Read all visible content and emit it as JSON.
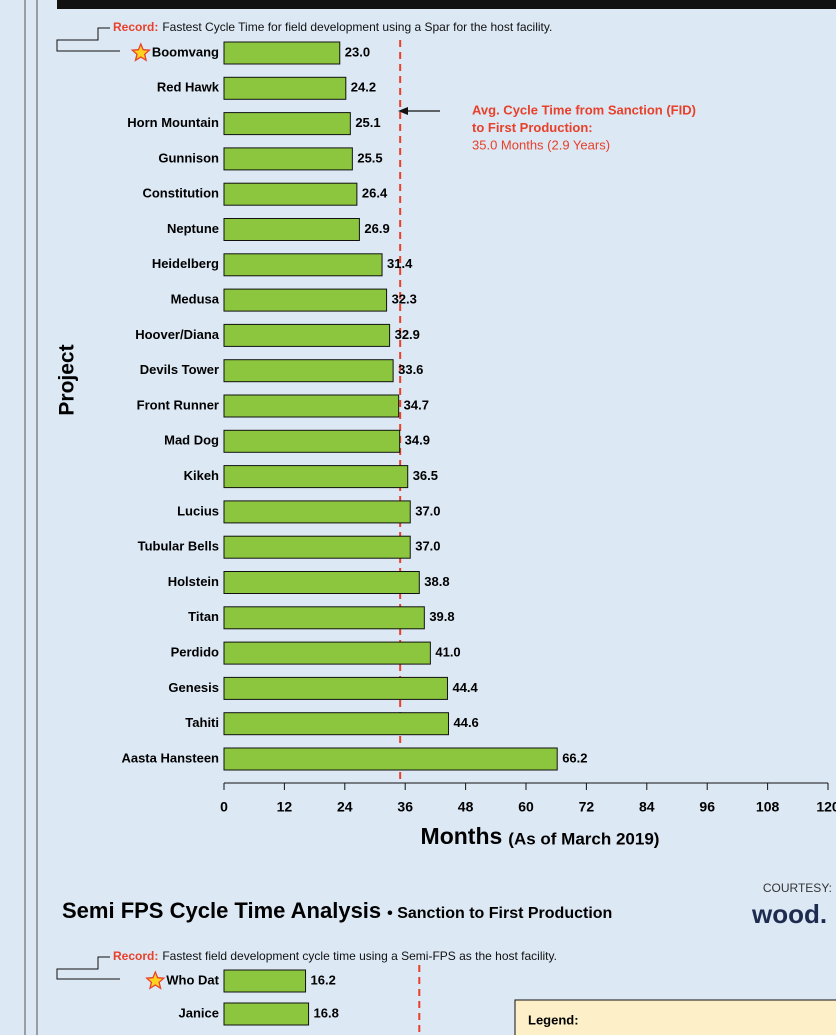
{
  "chart_data": [
    {
      "type": "bar",
      "ylabel": "Project",
      "xlabel": "Months",
      "xlabel_note": "(As of March 2019)",
      "record_label": "Record:",
      "record_text": "Fastest Cycle Time for field development using a Spar for the host facility.",
      "avg_annotation": [
        "Avg. Cycle Time from Sanction (FID)",
        "to First Production:",
        "35.0 Months (2.9 Years)"
      ],
      "avg_line": 35.0,
      "categories": [
        "Boomvang",
        "Red Hawk",
        "Horn Mountain",
        "Gunnison",
        "Constitution",
        "Neptune",
        "Heidelberg",
        "Medusa",
        "Hoover/Diana",
        "Devils Tower",
        "Front Runner",
        "Mad Dog",
        "Kikeh",
        "Lucius",
        "Tubular Bells",
        "Holstein",
        "Titan",
        "Perdido",
        "Genesis",
        "Tahiti",
        "Aasta Hansteen"
      ],
      "values": [
        23.0,
        24.2,
        25.1,
        25.5,
        26.4,
        26.9,
        31.4,
        32.3,
        32.9,
        33.6,
        34.7,
        34.9,
        36.5,
        37.0,
        37.0,
        38.8,
        39.8,
        41.0,
        44.4,
        44.6,
        66.2
      ],
      "value_labels": [
        "23.0",
        "24.2",
        "25.1",
        "25.5",
        "26.4",
        "26.9",
        "31.4",
        "32.3",
        "32.9",
        "33.6",
        "34.7",
        "34.9",
        "36.5",
        "37.0",
        "37.0",
        "38.8",
        "39.8",
        "41.0",
        "44.4",
        "44.6",
        "66.2"
      ],
      "color": "#8cc63e",
      "avg_color": "#e8402a",
      "xlim": [
        0,
        120
      ],
      "xticks": [
        0,
        12,
        24,
        36,
        48,
        60,
        72,
        84,
        96,
        108,
        120
      ]
    },
    {
      "type": "bar",
      "title": "Semi FPS Cycle Time Analysis",
      "subtitle": "• Sanction to First Production",
      "record_label": "Record:",
      "record_text": "Fastest field development cycle time using a Semi-FPS as the host facility.",
      "avg_line": 38.8,
      "categories": [
        "Who Dat",
        "Janice"
      ],
      "values": [
        16.2,
        16.8
      ],
      "color": "#8cc63e",
      "avg_color": "#e8402a",
      "xlim": [
        0,
        120
      ],
      "legend_title": "Legend:"
    }
  ],
  "courtesy": {
    "label": "COURTESY:",
    "logo": "wood."
  }
}
